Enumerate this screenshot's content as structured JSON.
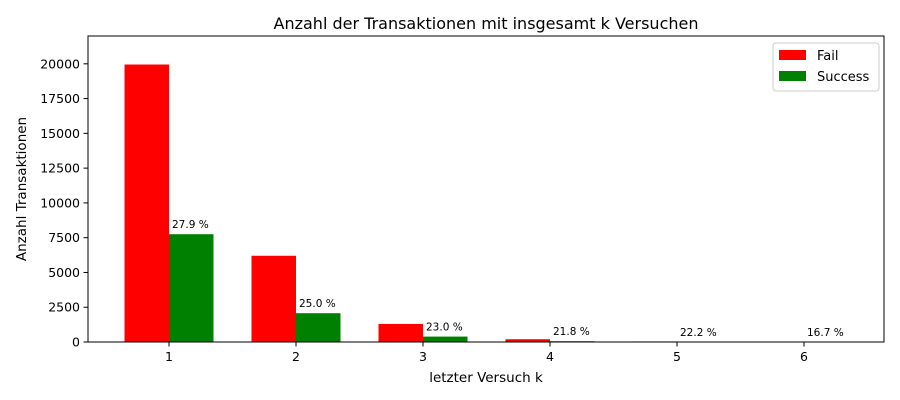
{
  "chart_data": {
    "type": "bar",
    "title": "Anzahl der Transaktionen mit insgesamt k Versuchen",
    "xlabel": "letzter Versuch k",
    "ylabel": "Anzahl Transaktionen",
    "categories": [
      "1",
      "2",
      "3",
      "4",
      "5",
      "6"
    ],
    "ylim": [
      0,
      22000
    ],
    "yticks": [
      0,
      2500,
      5000,
      7500,
      10000,
      12500,
      15000,
      17500,
      20000
    ],
    "ytick_labels": [
      "0",
      "2500",
      "5000",
      "7500",
      "10000",
      "12500",
      "15000",
      "17500",
      "20000"
    ],
    "grid": false,
    "legend_position": "top-right",
    "series": [
      {
        "name": "Fail",
        "color": "#ff0000",
        "values": [
          19950,
          6200,
          1300,
          200,
          40,
          5
        ]
      },
      {
        "name": "Success",
        "color": "#008000",
        "values": [
          7750,
          2070,
          390,
          56,
          11,
          1
        ]
      }
    ],
    "annotations": [
      "27.9 %",
      "25.0 %",
      "23.0 %",
      "21.8 %",
      "22.2 %",
      "16.7 %"
    ]
  }
}
